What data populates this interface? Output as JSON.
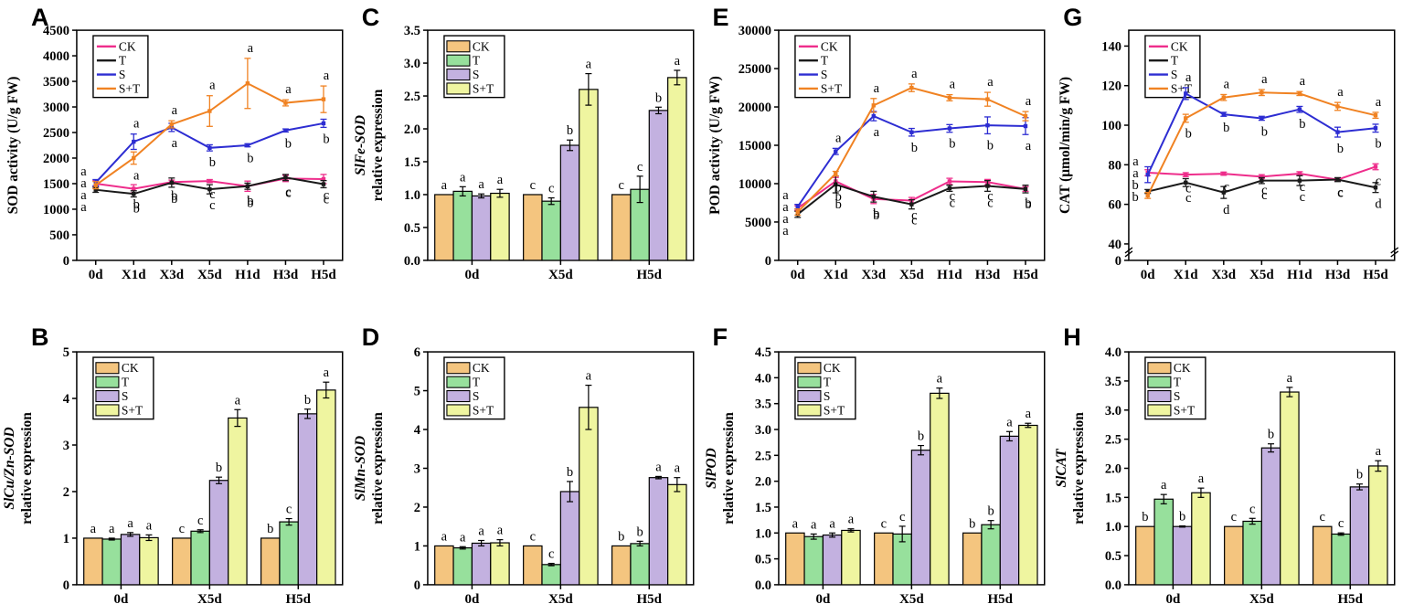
{
  "colors": {
    "line": {
      "CK": "#ee2d8b",
      "T": "#1a1a1a",
      "S": "#2d2dd2",
      "S+T": "#f08222"
    },
    "bar": {
      "CK": "#f4c57f",
      "T": "#97e09c",
      "S": "#c3b1e0",
      "S+T": "#eff5a0"
    },
    "axis": "#000000"
  },
  "treatments": [
    "CK",
    "T",
    "S",
    "S+T"
  ],
  "chart_data": [
    {
      "panel": "A",
      "type": "line",
      "title": "",
      "ylabel": "SOD activity (U/g FW)",
      "ylabel_lines": [
        {
          "text": "SOD activity (U/g FW)",
          "italic": false
        }
      ],
      "ylim": [
        0,
        4500
      ],
      "ytick_step": 500,
      "ytick_decimals": 0,
      "legend_position": "top-left",
      "grid": false,
      "categories": [
        "0d",
        "X1d",
        "X3d",
        "X5d",
        "H1d",
        "H3d",
        "H5d"
      ],
      "series": [
        {
          "name": "CK",
          "values": [
            1500,
            1400,
            1530,
            1550,
            1450,
            1600,
            1590
          ],
          "errors": [
            60,
            80,
            40,
            30,
            100,
            60,
            90
          ],
          "letters": [
            "a",
            "b",
            "b",
            "c",
            "b",
            "c",
            "c"
          ]
        },
        {
          "name": "T",
          "values": [
            1380,
            1300,
            1520,
            1390,
            1450,
            1620,
            1490
          ],
          "errors": [
            50,
            60,
            90,
            90,
            60,
            60,
            70
          ],
          "letters": [
            "a",
            "b",
            "b",
            "c",
            "b",
            "c",
            "c"
          ]
        },
        {
          "name": "S",
          "values": [
            1520,
            2320,
            2600,
            2200,
            2250,
            2540,
            2680
          ],
          "errors": [
            60,
            150,
            80,
            60,
            30,
            30,
            80
          ],
          "letters": [
            "a",
            "a",
            "a",
            "b",
            "b",
            "b",
            "b"
          ]
        },
        {
          "name": "S+T",
          "values": [
            1470,
            2000,
            2660,
            2920,
            3460,
            3080,
            3150
          ],
          "errors": [
            70,
            120,
            70,
            300,
            490,
            60,
            260
          ],
          "letters": [
            "a",
            "a",
            "a",
            "a",
            "a",
            "a",
            "a"
          ]
        }
      ]
    },
    {
      "panel": "C",
      "type": "bar",
      "title": "",
      "ylabel": "SlFe-SOD relative expression",
      "ylabel_lines": [
        {
          "text": "SlFe-SOD",
          "italic": true
        },
        {
          "text": "relative expression",
          "italic": false
        }
      ],
      "ylim": [
        0,
        3.5
      ],
      "ytick_step": 0.5,
      "ytick_decimals": 1,
      "legend_position": "top-left",
      "grid": false,
      "categories": [
        "0d",
        "X5d",
        "H5d"
      ],
      "series": [
        {
          "name": "CK",
          "values": [
            1.0,
            1.0,
            1.0
          ],
          "errors": [
            0,
            0,
            0
          ],
          "letters": [
            "a",
            "c",
            "c"
          ]
        },
        {
          "name": "T",
          "values": [
            1.05,
            0.9,
            1.08
          ],
          "errors": [
            0.07,
            0.05,
            0.2
          ],
          "letters": [
            "a",
            "c",
            "c"
          ]
        },
        {
          "name": "S",
          "values": [
            0.98,
            1.75,
            2.28
          ],
          "errors": [
            0.03,
            0.08,
            0.05
          ],
          "letters": [
            "a",
            "b",
            "b"
          ]
        },
        {
          "name": "S+T",
          "values": [
            1.02,
            2.6,
            2.78
          ],
          "errors": [
            0.06,
            0.24,
            0.11
          ],
          "letters": [
            "a",
            "a",
            "a"
          ]
        }
      ]
    },
    {
      "panel": "E",
      "type": "line",
      "title": "",
      "ylabel": "POD activity (U/g FW)",
      "ylabel_lines": [
        {
          "text": "POD activity (U/g FW)",
          "italic": false
        }
      ],
      "ylim": [
        0,
        30000
      ],
      "ytick_step": 5000,
      "ytick_decimals": 0,
      "legend_position": "top-left",
      "grid": false,
      "categories": [
        "0d",
        "X1d",
        "X3d",
        "X5d",
        "H1d",
        "H3d",
        "H5d"
      ],
      "series": [
        {
          "name": "CK",
          "values": [
            6800,
            10300,
            8000,
            7800,
            10300,
            10200,
            9300
          ],
          "errors": [
            300,
            500,
            600,
            400,
            400,
            350,
            300
          ],
          "letters": [
            "a",
            "b",
            "b",
            "c",
            "c",
            "c",
            "b"
          ]
        },
        {
          "name": "T",
          "values": [
            6000,
            9900,
            8300,
            7300,
            9400,
            9700,
            9300
          ],
          "errors": [
            400,
            1100,
            700,
            600,
            400,
            700,
            500
          ],
          "letters": [
            "a",
            "b",
            "b",
            "c",
            "c",
            "c",
            "b"
          ]
        },
        {
          "name": "S",
          "values": [
            7000,
            14200,
            18800,
            16700,
            17200,
            17600,
            17500
          ],
          "errors": [
            300,
            400,
            600,
            500,
            500,
            1100,
            1100
          ],
          "letters": [
            "a",
            "a",
            "a",
            "b",
            "b",
            "b",
            "a"
          ]
        },
        {
          "name": "S+T",
          "values": [
            6300,
            11300,
            20200,
            22500,
            21200,
            21000,
            18800
          ],
          "errors": [
            400,
            300,
            900,
            500,
            400,
            900,
            600
          ],
          "letters": [
            "a",
            "b",
            "a",
            "a",
            "a",
            "a",
            "a"
          ]
        }
      ]
    },
    {
      "panel": "G",
      "type": "line",
      "title": "",
      "ylabel": "CAT (μmol/min/g FW)",
      "ylabel_lines": [
        {
          "text": "CAT (μmol/min/g FW)",
          "italic": false
        }
      ],
      "ylim": [
        0,
        148
      ],
      "yticks": [
        0,
        40,
        60,
        80,
        100,
        120,
        140
      ],
      "ytick_decimals": 0,
      "broken_y": true,
      "y_upper_min": 40,
      "y_display_max": 148,
      "legend_position": "top-left",
      "grid": false,
      "categories": [
        "0d",
        "X1d",
        "X3d",
        "X5d",
        "H1d",
        "H3d",
        "H5d"
      ],
      "series": [
        {
          "name": "CK",
          "values": [
            76,
            75,
            75.5,
            74,
            75.5,
            72.5,
            79
          ],
          "errors": [
            1.5,
            1,
            0.8,
            1,
            1,
            0.7,
            1.5
          ],
          "letters": [
            "a",
            "c",
            "c",
            "c",
            "c",
            "c",
            "c"
          ]
        },
        {
          "name": "T",
          "values": [
            66.5,
            71,
            66,
            72,
            72,
            72.5,
            68.5
          ],
          "errors": [
            1,
            2,
            3,
            1.5,
            2.5,
            1,
            2.5
          ],
          "letters": [
            "b",
            "c",
            "d",
            "c",
            "c",
            "c",
            "d"
          ]
        },
        {
          "name": "S",
          "values": [
            75,
            116,
            105.5,
            103.5,
            108,
            96.5,
            98.5
          ],
          "errors": [
            4,
            3,
            1,
            1,
            1.5,
            2.5,
            2
          ],
          "letters": [
            "a",
            "a",
            "b",
            "b",
            "b",
            "b",
            "b"
          ]
        },
        {
          "name": "S+T",
          "values": [
            64.5,
            103.5,
            114,
            116.5,
            116,
            109.5,
            105
          ],
          "errors": [
            1.5,
            2,
            1.5,
            1.5,
            1,
            2,
            1.5
          ],
          "letters": [
            "b",
            "b",
            "a",
            "a",
            "a",
            "a",
            "a"
          ]
        }
      ]
    },
    {
      "panel": "B",
      "type": "bar",
      "title": "",
      "ylabel": "SlCu/Zn-SOD relative expression",
      "ylabel_lines": [
        {
          "text": "SlCu/Zn-SOD",
          "italic": true
        },
        {
          "text": "relative expression",
          "italic": false
        }
      ],
      "ylim": [
        0,
        5
      ],
      "ytick_step": 1,
      "ytick_decimals": 0,
      "legend_position": "top-left",
      "grid": false,
      "categories": [
        "0d",
        "X5d",
        "H5d"
      ],
      "series": [
        {
          "name": "CK",
          "values": [
            1.0,
            1.0,
            1.0
          ],
          "errors": [
            0,
            0,
            0
          ],
          "letters": [
            "a",
            "c",
            "b"
          ]
        },
        {
          "name": "T",
          "values": [
            0.98,
            1.15,
            1.35
          ],
          "errors": [
            0.02,
            0.03,
            0.07
          ],
          "letters": [
            "a",
            "c",
            "c"
          ]
        },
        {
          "name": "S",
          "values": [
            1.08,
            2.24,
            3.67
          ],
          "errors": [
            0.04,
            0.07,
            0.1
          ],
          "letters": [
            "a",
            "b",
            "b"
          ]
        },
        {
          "name": "S+T",
          "values": [
            1.01,
            3.58,
            4.18
          ],
          "errors": [
            0.06,
            0.18,
            0.17
          ],
          "letters": [
            "a",
            "a",
            "a"
          ]
        }
      ]
    },
    {
      "panel": "D",
      "type": "bar",
      "title": "",
      "ylabel": "SlMn-SOD relative expression",
      "ylabel_lines": [
        {
          "text": "SlMn-SOD",
          "italic": true
        },
        {
          "text": "relative expression",
          "italic": false
        }
      ],
      "ylim": [
        0,
        6
      ],
      "ytick_step": 1,
      "ytick_decimals": 0,
      "legend_position": "top-left",
      "grid": false,
      "categories": [
        "0d",
        "X5d",
        "H5d"
      ],
      "series": [
        {
          "name": "CK",
          "values": [
            1.0,
            1.0,
            1.0
          ],
          "errors": [
            0,
            0,
            0
          ],
          "letters": [
            "a",
            "c",
            "b"
          ]
        },
        {
          "name": "T",
          "values": [
            0.95,
            0.52,
            1.06
          ],
          "errors": [
            0.03,
            0.03,
            0.06
          ],
          "letters": [
            "a",
            "c",
            "b"
          ]
        },
        {
          "name": "S",
          "values": [
            1.07,
            2.4,
            2.76
          ],
          "errors": [
            0.07,
            0.26,
            0.03
          ],
          "letters": [
            "a",
            "b",
            "a"
          ]
        },
        {
          "name": "S+T",
          "values": [
            1.08,
            4.57,
            2.58
          ],
          "errors": [
            0.08,
            0.57,
            0.18
          ],
          "letters": [
            "a",
            "a",
            "a"
          ]
        }
      ]
    },
    {
      "panel": "F",
      "type": "bar",
      "title": "",
      "ylabel": "SlPOD relative expression",
      "ylabel_lines": [
        {
          "text": "SlPOD",
          "italic": true
        },
        {
          "text": "relative expression",
          "italic": false
        }
      ],
      "ylim": [
        0,
        4.5
      ],
      "ytick_step": 0.5,
      "ytick_decimals": 1,
      "legend_position": "top-left",
      "grid": false,
      "categories": [
        "0d",
        "X5d",
        "H5d"
      ],
      "series": [
        {
          "name": "CK",
          "values": [
            1.0,
            1.0,
            1.0
          ],
          "errors": [
            0,
            0,
            0
          ],
          "letters": [
            "a",
            "c",
            "b"
          ]
        },
        {
          "name": "T",
          "values": [
            0.93,
            0.98,
            1.16
          ],
          "errors": [
            0.05,
            0.15,
            0.08
          ],
          "letters": [
            "a",
            "c",
            "b"
          ]
        },
        {
          "name": "S",
          "values": [
            0.96,
            2.6,
            2.87
          ],
          "errors": [
            0.04,
            0.09,
            0.09
          ],
          "letters": [
            "a",
            "b",
            "a"
          ]
        },
        {
          "name": "S+T",
          "values": [
            1.05,
            3.7,
            3.08
          ],
          "errors": [
            0.03,
            0.1,
            0.04
          ],
          "letters": [
            "a",
            "a",
            "a"
          ]
        }
      ]
    },
    {
      "panel": "H",
      "type": "bar",
      "title": "",
      "ylabel": "SlCAT relative expression",
      "ylabel_lines": [
        {
          "text": "SlCAT",
          "italic": true
        },
        {
          "text": "relative expression",
          "italic": false
        }
      ],
      "ylim": [
        0,
        4.0
      ],
      "ytick_step": 0.5,
      "ytick_decimals": 1,
      "legend_position": "top-left",
      "grid": false,
      "categories": [
        "0d",
        "X5d",
        "H5d"
      ],
      "series": [
        {
          "name": "CK",
          "values": [
            1.0,
            1.0,
            1.0
          ],
          "errors": [
            0,
            0,
            0
          ],
          "letters": [
            "b",
            "c",
            "c"
          ]
        },
        {
          "name": "T",
          "values": [
            1.47,
            1.09,
            0.87
          ],
          "errors": [
            0.08,
            0.05,
            0.02
          ],
          "letters": [
            "a",
            "c",
            "c"
          ]
        },
        {
          "name": "S",
          "values": [
            1.0,
            2.35,
            1.68
          ],
          "errors": [
            0.01,
            0.07,
            0.05
          ],
          "letters": [
            "b",
            "b",
            "b"
          ]
        },
        {
          "name": "S+T",
          "values": [
            1.58,
            3.31,
            2.04
          ],
          "errors": [
            0.08,
            0.08,
            0.09
          ],
          "letters": [
            "a",
            "a",
            "a"
          ]
        }
      ]
    }
  ]
}
